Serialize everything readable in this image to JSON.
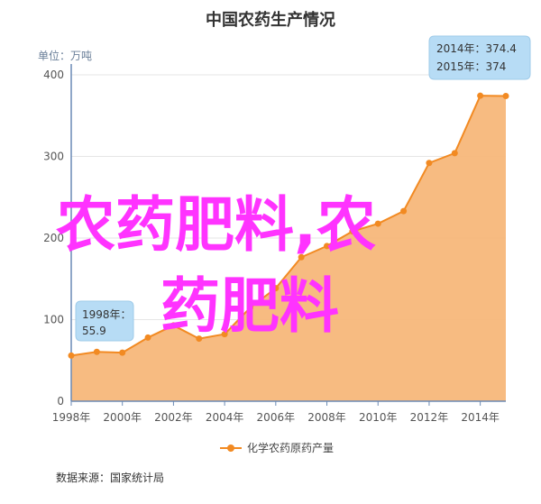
{
  "chart_data": {
    "type": "area",
    "title": "中国农药生产情况",
    "unit_label": "单位：万吨",
    "x": [
      1998,
      1999,
      2000,
      2001,
      2002,
      2003,
      2004,
      2005,
      2006,
      2007,
      2008,
      2009,
      2010,
      2011,
      2012,
      2013,
      2014,
      2015
    ],
    "x_tick_labels": [
      "1998年",
      "2000年",
      "2002年",
      "2004年",
      "2006年",
      "2008年",
      "2010年",
      "2012年",
      "2014年"
    ],
    "y_ticks": [
      "0",
      "100",
      "200",
      "300",
      "400"
    ],
    "ylim": [
      0,
      400
    ],
    "series": [
      {
        "name": "化学农药原药产量",
        "color": "#f28a22",
        "fill": "#f7b77a",
        "values": [
          55.9,
          60.5,
          59.5,
          78,
          92.9,
          76.7,
          82.2,
          114.7,
          138.5,
          176.5,
          190.2,
          208.2,
          217.6,
          233,
          292,
          304,
          374.4,
          374
        ]
      }
    ],
    "grid": true,
    "legend_position": "bottom-center",
    "tooltips": [
      {
        "lines": [
          "1998年：",
          "55.9"
        ]
      },
      {
        "lines": [
          "2014年：374.4",
          "2015年：374"
        ]
      }
    ]
  },
  "source_note": "数据来源：国家统计局",
  "overlay_text": [
    "农药肥料,农",
    "药肥料"
  ]
}
